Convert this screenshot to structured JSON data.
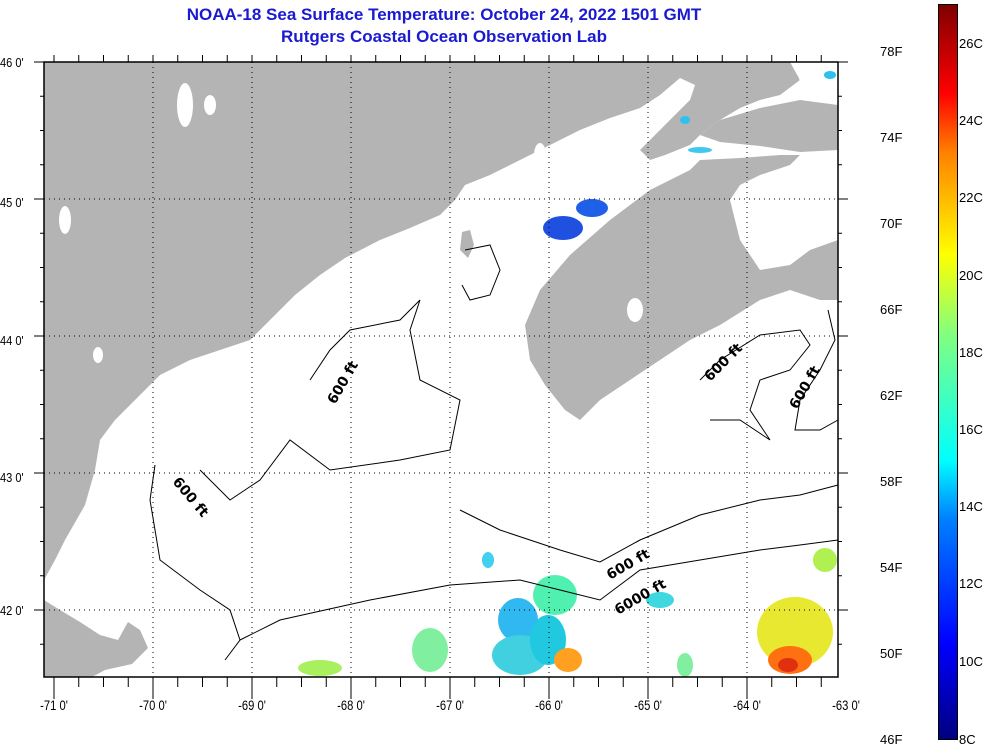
{
  "title": {
    "line1": "NOAA-18 Sea Surface Temperature:  October 24, 2022 1501 GMT",
    "line2": "Rutgers Coastal Ocean Observation Lab"
  },
  "map": {
    "lat_labels": [
      "46 0'",
      "45 0'",
      "44 0'",
      "43 0'",
      "42 0'"
    ],
    "lon_labels": [
      "-71 0'",
      "-70 0'",
      "-69 0'",
      "-68 0'",
      "-67 0'",
      "-66 0'",
      "-65 0'",
      "-64 0'",
      "-63 0'"
    ],
    "contour_labels": [
      "600 ft",
      "600 ft",
      "600 ft",
      "600 ft",
      "600 ft",
      "6000 ft"
    ],
    "land_color": "#b4b4b4",
    "water_color": "#ffffff"
  },
  "colorbar": {
    "fahrenheit_labels": [
      "78F",
      "74F",
      "70F",
      "66F",
      "62F",
      "58F",
      "54F",
      "50F",
      "46F"
    ],
    "celsius_labels": [
      "26C",
      "24C",
      "22C",
      "20C",
      "18C",
      "16C",
      "14C",
      "12C",
      "10C",
      "8C"
    ],
    "range_f": [
      46,
      80
    ],
    "range_c": [
      8,
      27
    ]
  }
}
